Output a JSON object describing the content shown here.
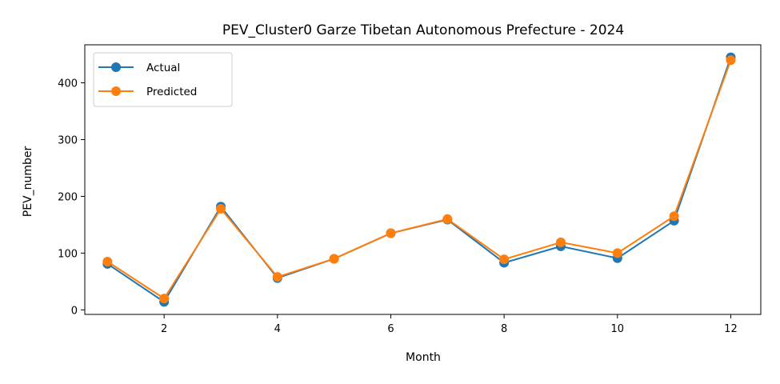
{
  "chart_data": {
    "type": "line",
    "title": "PEV_Cluster0 Garze Tibetan Autonomous Prefecture - 2024",
    "xlabel": "Month",
    "ylabel": "PEV_number",
    "x": [
      1,
      2,
      3,
      4,
      5,
      6,
      7,
      8,
      9,
      10,
      11,
      12
    ],
    "xlim": [
      0.6,
      12.53
    ],
    "ylim": [
      -8,
      467
    ],
    "xticks": [
      2,
      4,
      6,
      8,
      10,
      12
    ],
    "yticks": [
      0,
      100,
      200,
      300,
      400
    ],
    "grid": false,
    "legend_position": "top-left",
    "series": [
      {
        "name": "Actual",
        "color": "#1f77b4",
        "marker": "circle",
        "values": [
          81,
          14,
          182,
          56,
          90,
          135,
          159,
          83,
          112,
          91,
          157,
          445
        ]
      },
      {
        "name": "Predicted",
        "color": "#ff7f0e",
        "marker": "circle",
        "values": [
          85,
          20,
          178,
          58,
          90,
          135,
          160,
          89,
          119,
          100,
          165,
          440
        ]
      }
    ]
  }
}
